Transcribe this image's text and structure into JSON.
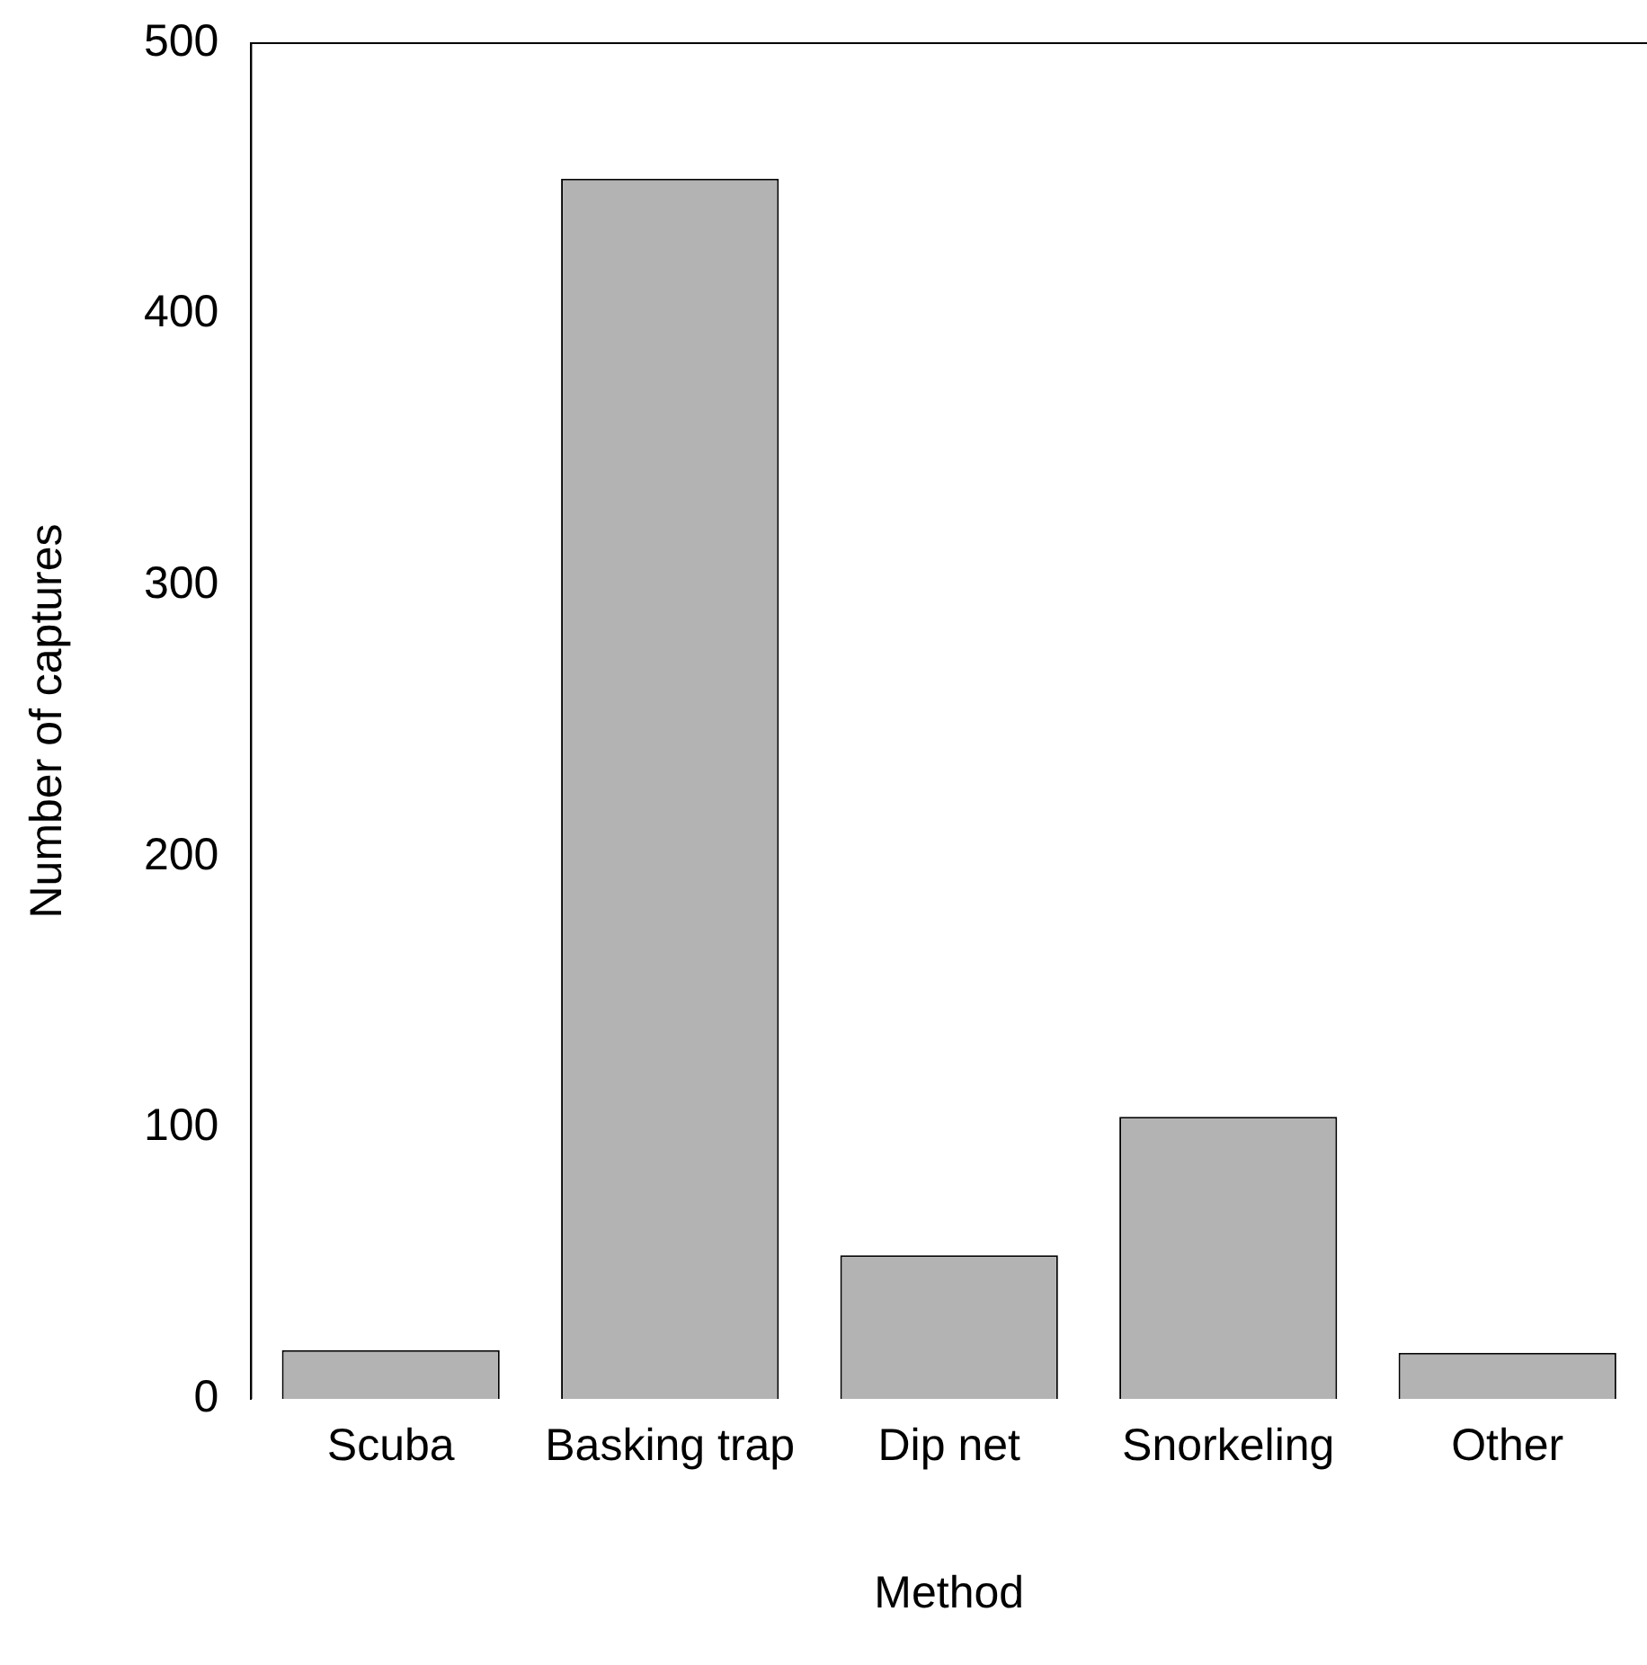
{
  "chart_data": {
    "type": "bar",
    "xlabel": "Method",
    "ylabel": "Number of captures",
    "categories": [
      "Scuba",
      "Basking trap",
      "Dip net",
      "Snorkeling",
      "Other"
    ],
    "values": [
      18,
      450,
      53,
      104,
      17
    ],
    "color": "#b3b3b3",
    "ylim": [
      0,
      500
    ],
    "yticks": [
      0,
      100,
      200,
      300,
      400,
      500
    ],
    "grid": false,
    "legend": false
  }
}
